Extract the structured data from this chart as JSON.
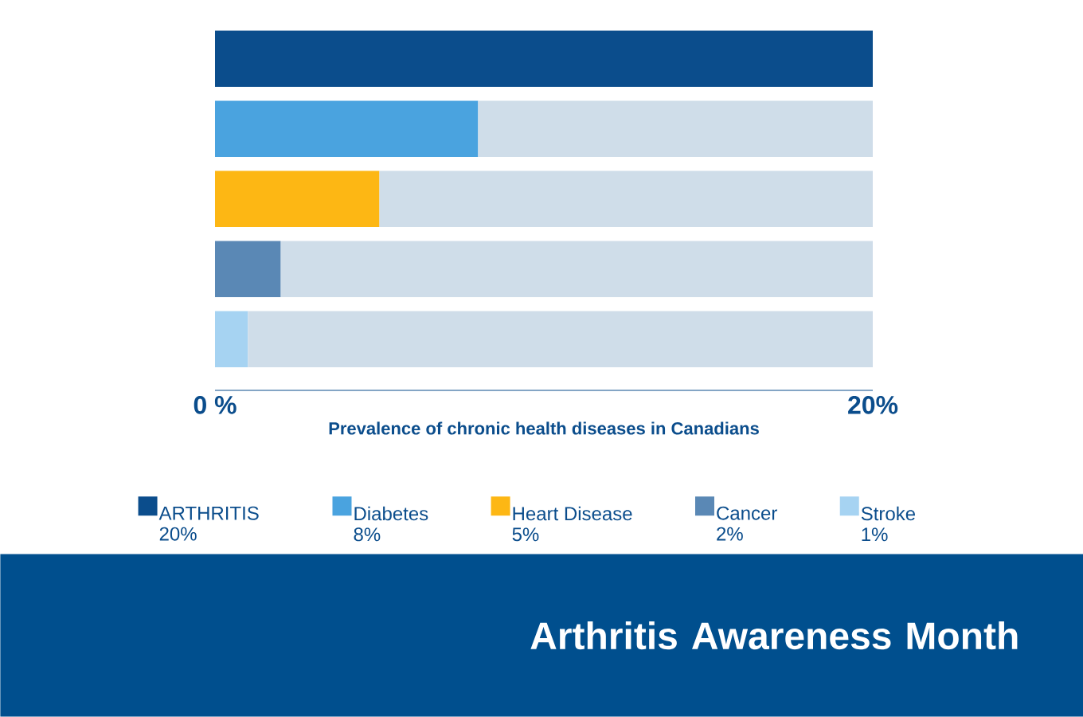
{
  "chart_data": {
    "type": "bar",
    "orientation": "horizontal",
    "stacked": true,
    "title": "Arthritis Awareness Month",
    "xlabel": "Prevalence of chronic health diseases in Canadians",
    "categories": [
      null,
      null,
      null,
      null,
      null
    ],
    "series": [
      {
        "name": "ARTHRITIS 20%",
        "color": "#0b4d8c",
        "values": [
          20,
          null,
          null,
          null,
          null
        ]
      },
      {
        "name": "Diabetes 8%",
        "color": "#4aa3df",
        "values": [
          null,
          8,
          null,
          null,
          null
        ]
      },
      {
        "name": "Heart Disease 5%",
        "color": "#fdb714",
        "values": [
          null,
          null,
          5,
          null,
          null
        ]
      },
      {
        "name": "Cancer 2%",
        "color": "#5a88b5",
        "values": [
          null,
          null,
          null,
          2,
          null
        ]
      },
      {
        "name": "Stroke 1%",
        "color": "#a6d3f2",
        "values": [
          null,
          null,
          null,
          null,
          1
        ]
      },
      {
        "color": "#cfdde9",
        "values": [
          null,
          12,
          15,
          18,
          19
        ]
      }
    ],
    "xlim": [
      0,
      20
    ],
    "xticks": [
      {
        "value": 0,
        "label": "0 %"
      },
      {
        "value": 20,
        "label": "20%"
      }
    ],
    "legend": "bottom"
  }
}
